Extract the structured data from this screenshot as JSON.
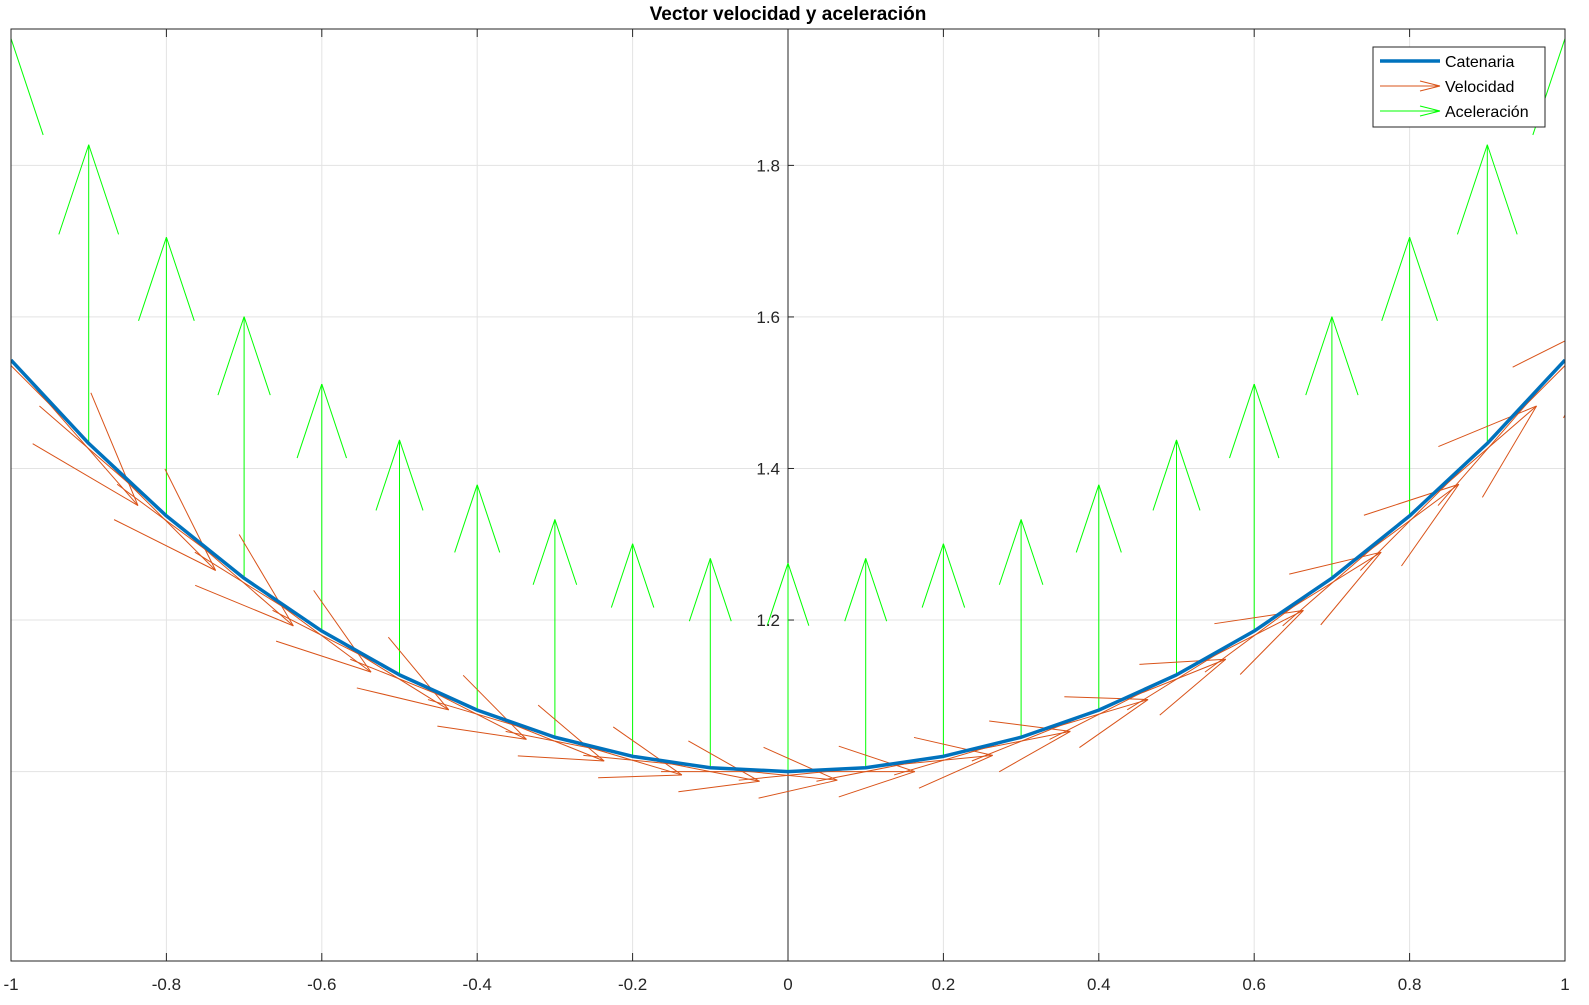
{
  "chart_data": {
    "type": "line",
    "title": "Vector velocidad y aceleración",
    "xlabel": "",
    "ylabel": "",
    "xlim": [
      -1,
      1
    ],
    "ylim": [
      0.75,
      1.98
    ],
    "grid": true,
    "legend_position": "top-right",
    "x_ticks": [
      "-1",
      "-0.8",
      "-0.6",
      "-0.4",
      "-0.2",
      "0",
      "0.2",
      "0.4",
      "0.6",
      "0.8",
      "1"
    ],
    "y_ticks": [
      "1.2",
      "1.4",
      "1.6",
      "1.8"
    ],
    "x_tick_values": [
      -1,
      -0.8,
      -0.6,
      -0.4,
      -0.2,
      0,
      0.2,
      0.4,
      0.6,
      0.8,
      1
    ],
    "y_tick_values": [
      1.0,
      1.2,
      1.4,
      1.6,
      1.8
    ],
    "y_tick_label_values": [
      1.2,
      1.4,
      1.6,
      1.8
    ],
    "x": [
      -1,
      -0.9,
      -0.8,
      -0.7,
      -0.6,
      -0.5,
      -0.4,
      -0.3,
      -0.2,
      -0.1,
      0,
      0.1,
      0.2,
      0.3,
      0.4,
      0.5,
      0.6,
      0.7,
      0.8,
      0.9,
      1
    ],
    "series": [
      {
        "name": "Catenaria",
        "color": "#0072BD",
        "y": [
          1.5431,
          1.4331,
          1.3374,
          1.2552,
          1.1855,
          1.1276,
          1.0811,
          1.0453,
          1.0201,
          1.005,
          1.0,
          1.005,
          1.0201,
          1.0453,
          1.0811,
          1.1276,
          1.1855,
          1.2552,
          1.3374,
          1.4331,
          1.5431
        ]
      },
      {
        "name": "Velocidad",
        "color": "#D95319",
        "kind": "quiver",
        "vx": [
          1,
          1,
          1,
          1,
          1,
          1,
          1,
          1,
          1,
          1,
          1,
          1,
          1,
          1,
          1,
          1,
          1,
          1,
          1,
          1,
          1
        ],
        "vy": [
          -1.1752,
          -1.0265,
          -0.8881,
          -0.7586,
          -0.6367,
          -0.5211,
          -0.4108,
          -0.3045,
          -0.2013,
          -0.1002,
          0,
          0.1002,
          0.2013,
          0.3045,
          0.4108,
          0.5211,
          0.6367,
          0.7586,
          0.8881,
          1.0265,
          1.1752
        ]
      },
      {
        "name": "Aceleración",
        "color": "#00FF00",
        "kind": "quiver",
        "ax": [
          0,
          0,
          0,
          0,
          0,
          0,
          0,
          0,
          0,
          0,
          0,
          0,
          0,
          0,
          0,
          0,
          0,
          0,
          0,
          0,
          0
        ],
        "ay": [
          1.5431,
          1.4331,
          1.3374,
          1.2552,
          1.1855,
          1.1276,
          1.0811,
          1.0453,
          1.0201,
          1.005,
          1.0,
          1.005,
          1.0201,
          1.0453,
          1.0811,
          1.1276,
          1.1855,
          1.2552,
          1.3374,
          1.4331,
          1.5431
        ]
      }
    ],
    "legend": [
      "Catenaria",
      "Velocidad",
      "Aceleración"
    ]
  }
}
